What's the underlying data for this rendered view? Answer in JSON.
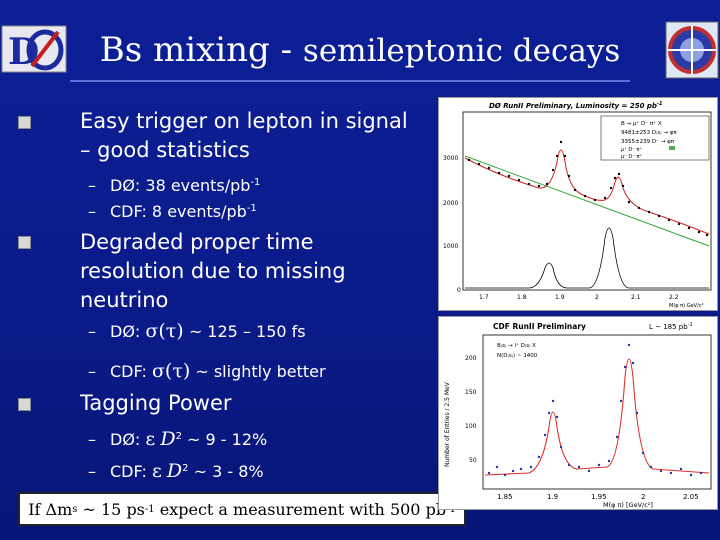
{
  "slide": {
    "title_main": "Bs mixing -",
    "title_sub": "semileptonic decays",
    "bullets": [
      {
        "text_line1": "Easy trigger on lepton in signal",
        "text_line2": "– good statistics"
      },
      {
        "text_line1": "Degraded proper time",
        "text_line2": "resolution due to missing",
        "text_line3": "neutrino"
      },
      {
        "text": "Tagging Power"
      }
    ],
    "sub_bullets": {
      "d0_events": "DØ:  38 events/pb",
      "cdf_events": "CDF:  8 events/pb",
      "d0_sigma_prefix": "DØ:",
      "d0_sigma_value": "~ 125 – 150 fs",
      "cdf_sigma_prefix": "CDF:",
      "cdf_sigma_value": "~ slightly better",
      "d0_tag_prefix": "DØ:",
      "d0_tag_value": "~ 9 - 12%",
      "cdf_tag_prefix": "CDF:",
      "cdf_tag_value": "~ 3 - 8%"
    },
    "callout_prefix": "If",
    "callout_mid": "~ 15 ps",
    "callout_suffix": "expect a measurement with 500 pb",
    "sup_minus1": "-1",
    "sub_s": "s",
    "sup_2": "2",
    "sym_sigma": "σ(τ)",
    "sym_eps": "ε",
    "sym_D": "D",
    "sym_delta_m": "Δm"
  },
  "d0_plot": {
    "header": "DØ RunII  Preliminary, Luminosity = 250 pb",
    "legend_1": "B → μ⁺ D⁻ π⁺ X",
    "legend_2": "9481±253  D₍s₎ → φπ",
    "legend_3": "3355±239  D⁻ → φπ",
    "legend_4": "μ⁺ D⁻ π⁺",
    "legend_5": "μ⁻ D⁻ π⁺",
    "yticks": [
      "3000",
      "2000",
      "1000",
      "0"
    ],
    "xticks": [
      "1.7",
      "1.8",
      "1.9",
      "2",
      "2.1",
      "2.2"
    ],
    "xlabel": "M(φ π) GeV/c²"
  },
  "cdf_plot": {
    "header": "CDF RunII Preliminary",
    "lumi": "L ~ 185 pb",
    "legend_1": "B₍s₎ → l⁺ D₍s₎ X",
    "legend_2": "N(D₍s₎) ~ 1400",
    "ylabel": "Number of Entries / 2.5 MeV",
    "yticks": [
      "200",
      "150",
      "100",
      "50"
    ],
    "xticks": [
      "1.85",
      "1.9",
      "1.95",
      "2",
      "2.05"
    ],
    "xlabel": "M(φ π) [GeV/c²]"
  }
}
